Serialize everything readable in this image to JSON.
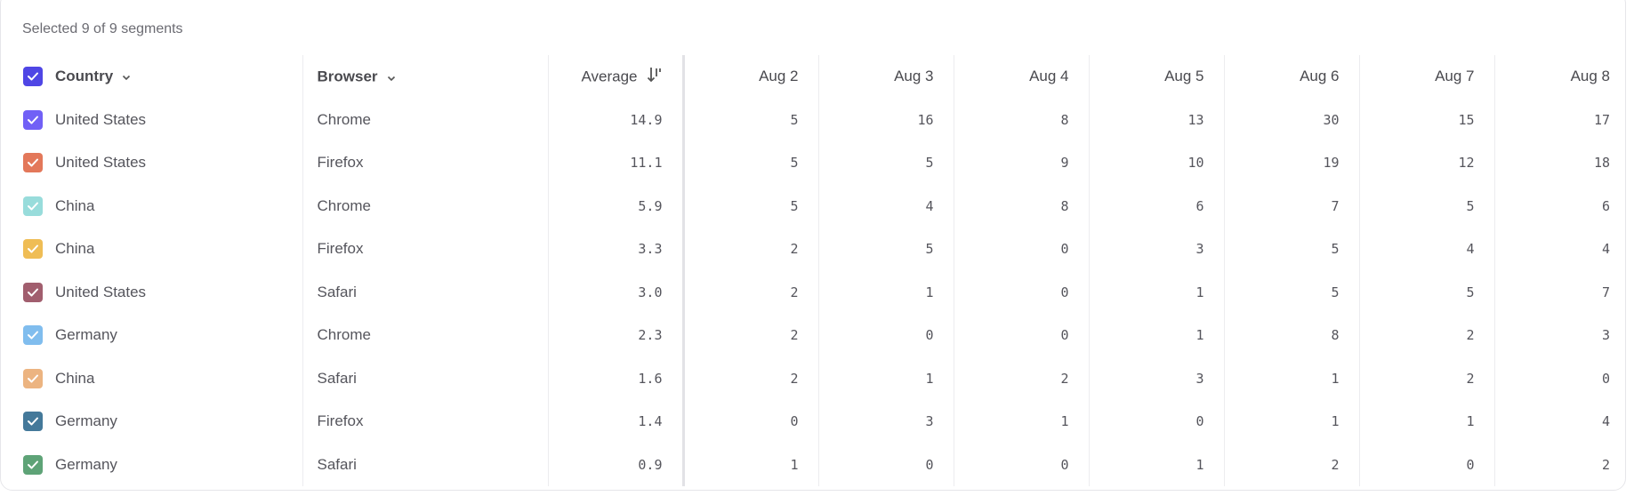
{
  "summary": "Selected 9 of 9 segments",
  "header": {
    "country": "Country",
    "browser": "Browser",
    "average": "Average",
    "header_checkbox_color": "#4f46e5",
    "dates": [
      "Aug 2",
      "Aug 3",
      "Aug 4",
      "Aug 5",
      "Aug 6",
      "Aug 7",
      "Aug 8"
    ]
  },
  "rows": [
    {
      "country": "United States",
      "browser": "Chrome",
      "average": "14.9",
      "color": "#7160f6",
      "values": [
        "5",
        "16",
        "8",
        "13",
        "30",
        "15",
        "17"
      ]
    },
    {
      "country": "United States",
      "browser": "Firefox",
      "average": "11.1",
      "color": "#e3785a",
      "values": [
        "5",
        "5",
        "9",
        "10",
        "19",
        "12",
        "18"
      ]
    },
    {
      "country": "China",
      "browser": "Chrome",
      "average": "5.9",
      "color": "#98dcdb",
      "values": [
        "5",
        "4",
        "8",
        "6",
        "7",
        "5",
        "6"
      ]
    },
    {
      "country": "China",
      "browser": "Firefox",
      "average": "3.3",
      "color": "#efbd55",
      "values": [
        "2",
        "5",
        "0",
        "3",
        "5",
        "4",
        "4"
      ]
    },
    {
      "country": "United States",
      "browser": "Safari",
      "average": "3.0",
      "color": "#a15e6e",
      "values": [
        "2",
        "1",
        "0",
        "1",
        "5",
        "5",
        "7"
      ]
    },
    {
      "country": "Germany",
      "browser": "Chrome",
      "average": "2.3",
      "color": "#80bdee",
      "values": [
        "2",
        "0",
        "0",
        "1",
        "8",
        "2",
        "3"
      ]
    },
    {
      "country": "China",
      "browser": "Safari",
      "average": "1.6",
      "color": "#ecb481",
      "values": [
        "2",
        "1",
        "2",
        "3",
        "1",
        "2",
        "0"
      ]
    },
    {
      "country": "Germany",
      "browser": "Firefox",
      "average": "1.4",
      "color": "#44799a",
      "values": [
        "0",
        "3",
        "1",
        "0",
        "1",
        "1",
        "4"
      ]
    },
    {
      "country": "Germany",
      "browser": "Safari",
      "average": "0.9",
      "color": "#5ea377",
      "values": [
        "1",
        "0",
        "0",
        "1",
        "2",
        "0",
        "2"
      ]
    }
  ]
}
